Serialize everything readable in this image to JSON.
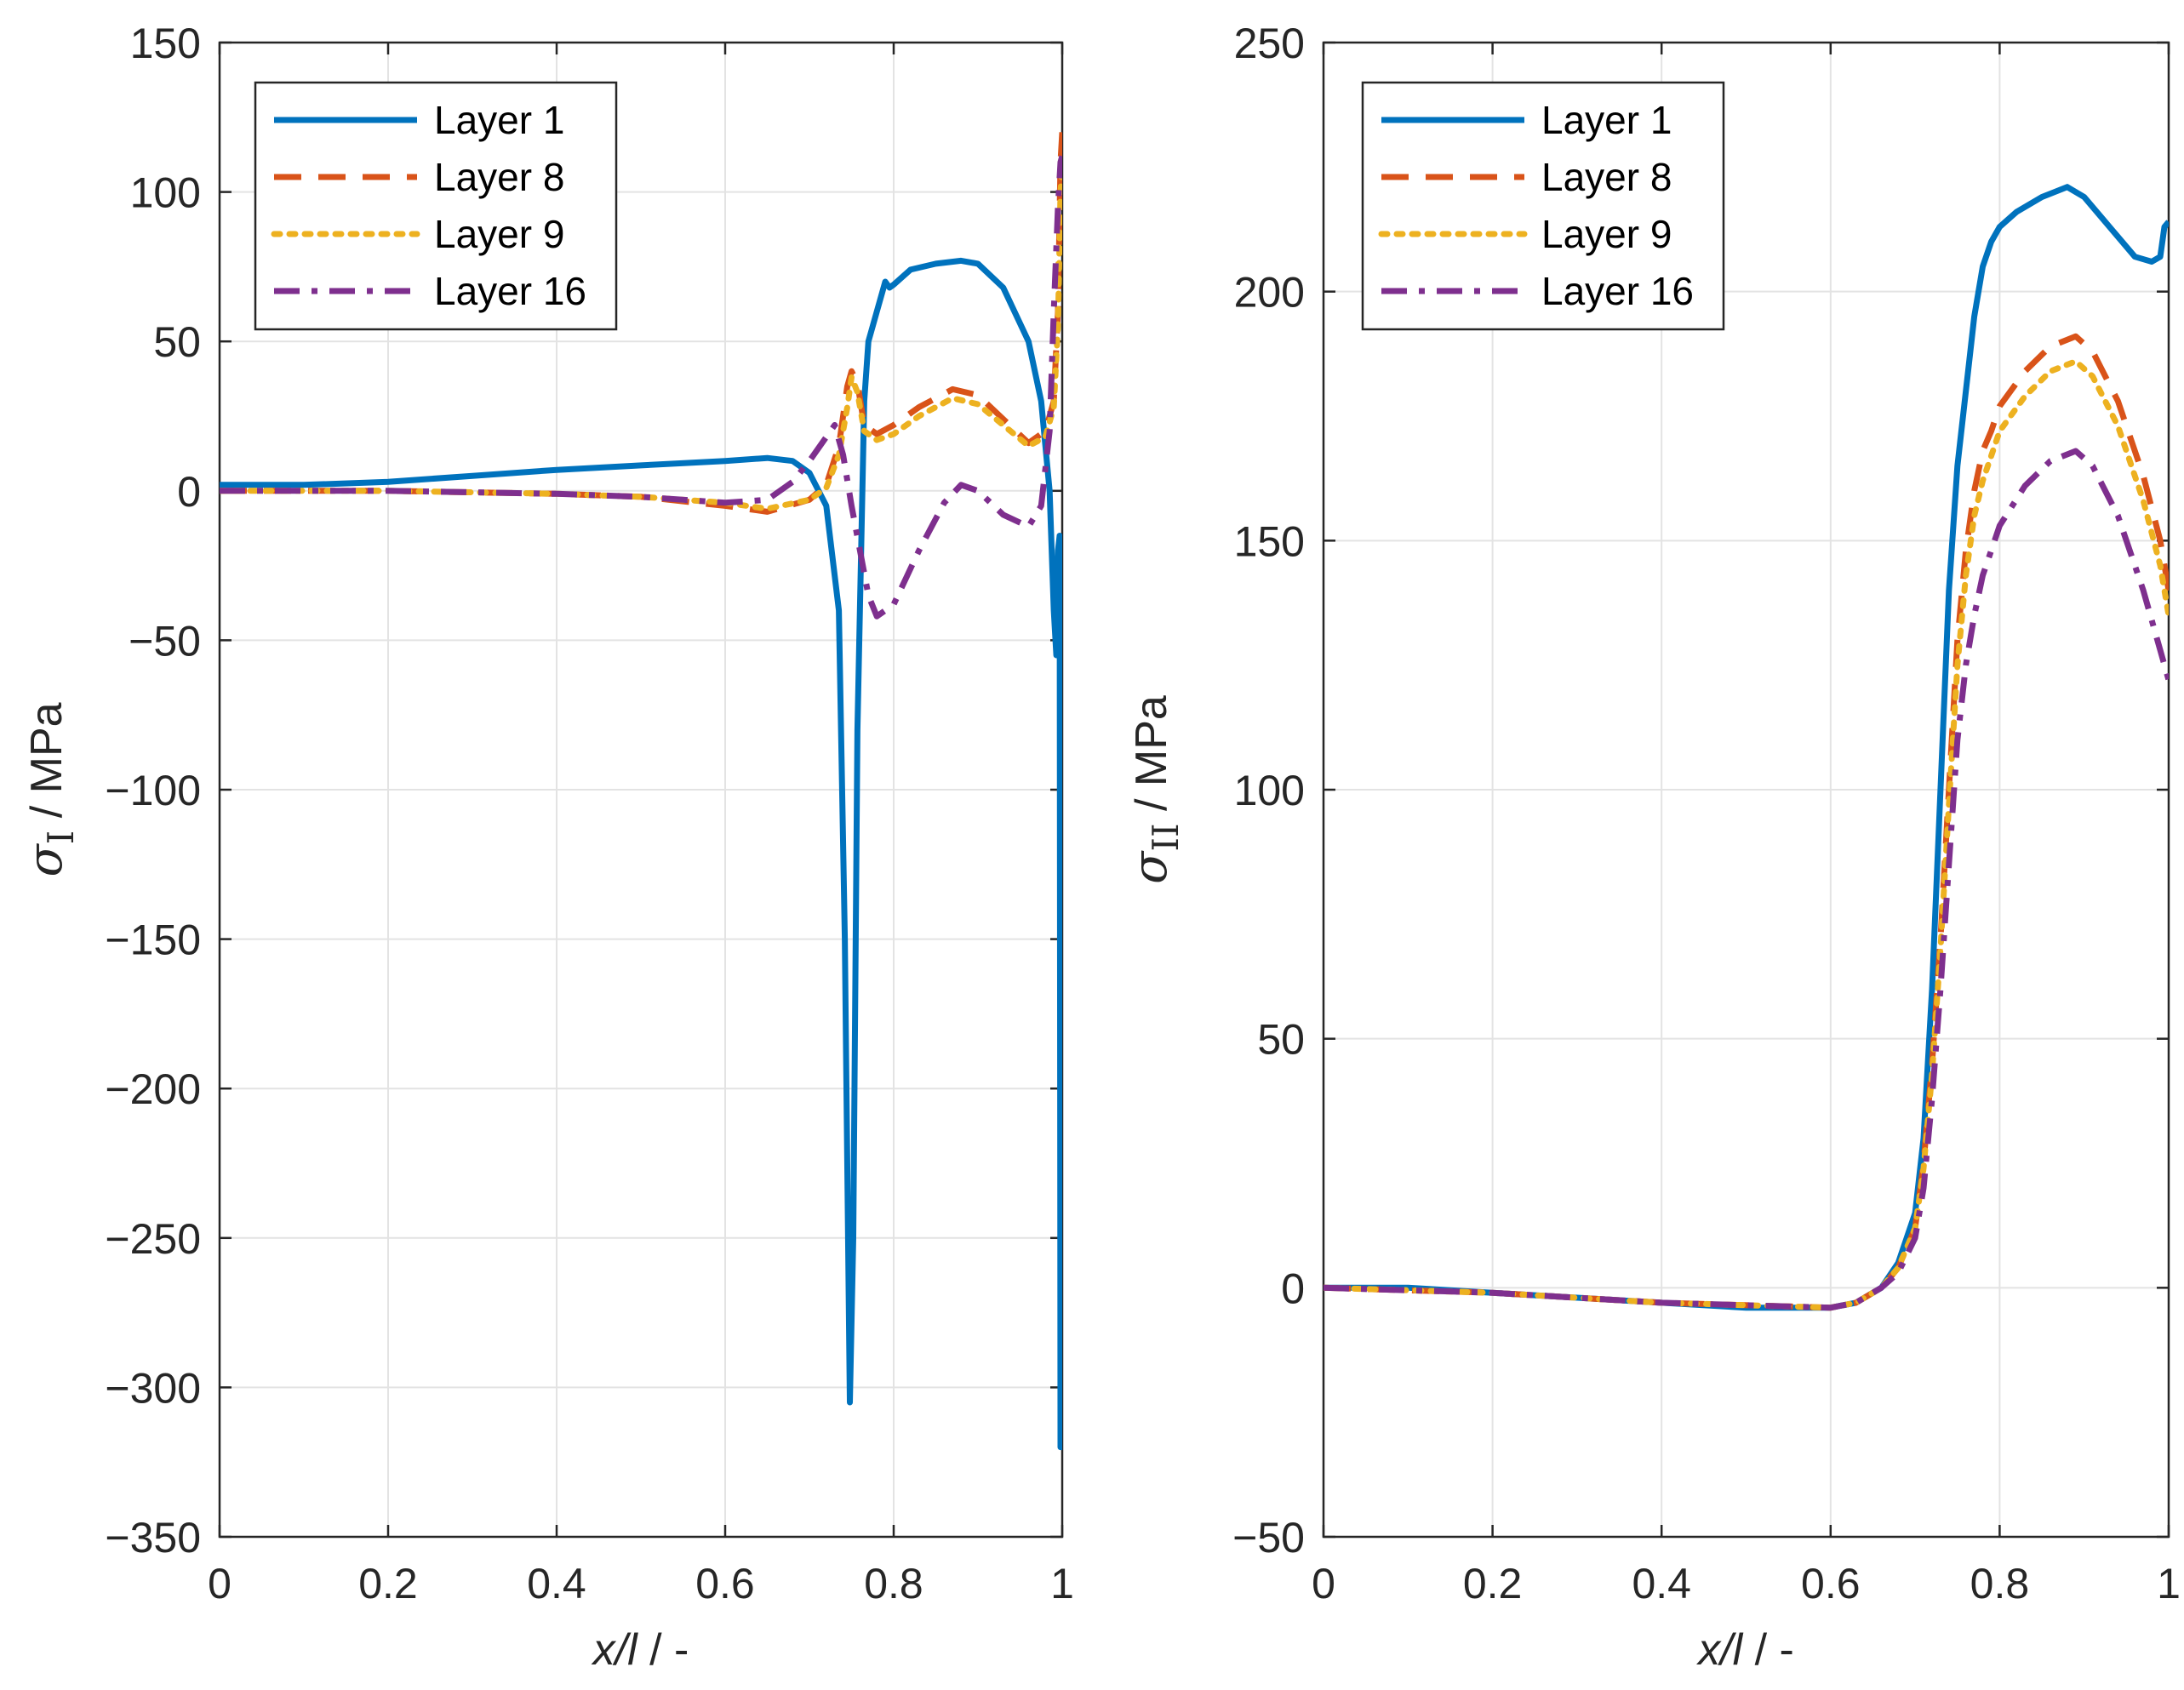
{
  "chart_data": [
    {
      "type": "line",
      "id": "left",
      "xlabel": "x/l",
      "xlabel_suffix": " / -",
      "ylabel": "σ",
      "ylabel_sub": "I",
      "ylabel_suffix": " / MPa",
      "xlim": [
        0,
        1
      ],
      "ylim": [
        -350,
        150
      ],
      "xticks": [
        0,
        0.2,
        0.4,
        0.6,
        0.8,
        1
      ],
      "xtick_labels": [
        "0",
        "0.2",
        "0.4",
        "0.6",
        "0.8",
        "1"
      ],
      "yticks": [
        -350,
        -300,
        -250,
        -200,
        -150,
        -100,
        -50,
        0,
        50,
        100,
        150
      ],
      "ytick_labels": [
        "−350",
        "−300",
        "−250",
        "−200",
        "−150",
        "−100",
        "−50",
        "0",
        "50",
        "100",
        "150"
      ],
      "grid": true,
      "legend_position": "top-left",
      "series": [
        {
          "name": "Layer 1",
          "color": "#0072BD",
          "style": "solid",
          "x": [
            0,
            0.1,
            0.2,
            0.3,
            0.4,
            0.5,
            0.6,
            0.65,
            0.68,
            0.7,
            0.72,
            0.735,
            0.742,
            0.748,
            0.752,
            0.757,
            0.765,
            0.77,
            0.78,
            0.79,
            0.795,
            0.8,
            0.82,
            0.85,
            0.88,
            0.9,
            0.93,
            0.96,
            0.975,
            0.985,
            0.99,
            0.993,
            0.995,
            0.997,
            0.998,
            1.0
          ],
          "y": [
            2,
            2,
            3,
            5,
            7,
            8.5,
            10,
            11,
            10,
            6,
            -5,
            -40,
            -150,
            -305,
            -250,
            -80,
            30,
            50,
            60,
            70,
            68,
            69,
            74,
            76,
            77,
            76,
            68,
            50,
            30,
            0,
            -40,
            -55,
            -20,
            -15,
            -320,
            -320
          ]
        },
        {
          "name": "Layer 8",
          "color": "#D95319",
          "style": "dashed",
          "x": [
            0,
            0.2,
            0.4,
            0.5,
            0.6,
            0.65,
            0.7,
            0.72,
            0.735,
            0.745,
            0.75,
            0.757,
            0.765,
            0.78,
            0.8,
            0.83,
            0.87,
            0.9,
            0.93,
            0.96,
            0.98,
            0.99,
            0.995,
            0.998,
            1.0
          ],
          "y": [
            0,
            0,
            -1,
            -2,
            -5,
            -7,
            -3,
            2,
            15,
            35,
            40,
            36,
            22,
            19,
            22,
            28,
            34,
            32,
            24,
            16,
            20,
            30,
            60,
            110,
            120
          ]
        },
        {
          "name": "Layer 9",
          "color": "#EDB120",
          "style": "dotted",
          "x": [
            0,
            0.2,
            0.4,
            0.5,
            0.6,
            0.65,
            0.7,
            0.72,
            0.735,
            0.745,
            0.75,
            0.757,
            0.765,
            0.78,
            0.8,
            0.83,
            0.87,
            0.9,
            0.93,
            0.96,
            0.98,
            0.99,
            0.995,
            0.998,
            1.0
          ],
          "y": [
            0,
            0,
            -1,
            -2,
            -4,
            -6,
            -3,
            1,
            12,
            28,
            38,
            33,
            20,
            17,
            19,
            25,
            31,
            29,
            22,
            15,
            18,
            28,
            55,
            100,
            110
          ]
        },
        {
          "name": "Layer 16",
          "color": "#7E2F8E",
          "style": "dashdot",
          "x": [
            0,
            0.2,
            0.4,
            0.5,
            0.6,
            0.65,
            0.68,
            0.7,
            0.72,
            0.73,
            0.74,
            0.75,
            0.76,
            0.77,
            0.78,
            0.8,
            0.83,
            0.86,
            0.88,
            0.9,
            0.93,
            0.96,
            0.975,
            0.985,
            0.99,
            0.995,
            0.998,
            1.0
          ],
          "y": [
            0,
            0,
            -1,
            -2,
            -4,
            -3,
            3,
            10,
            18,
            22,
            12,
            -5,
            -20,
            -35,
            -42,
            -38,
            -20,
            -4,
            2,
            0,
            -8,
            -12,
            -5,
            20,
            60,
            95,
            110,
            112
          ]
        }
      ]
    },
    {
      "type": "line",
      "id": "right",
      "xlabel": "x/l",
      "xlabel_suffix": " / -",
      "ylabel": "σ",
      "ylabel_sub": "II",
      "ylabel_suffix": " / MPa",
      "xlim": [
        0,
        1
      ],
      "ylim": [
        -50,
        250
      ],
      "xticks": [
        0,
        0.2,
        0.4,
        0.6,
        0.8,
        1
      ],
      "xtick_labels": [
        "0",
        "0.2",
        "0.4",
        "0.6",
        "0.8",
        "1"
      ],
      "yticks": [
        -50,
        0,
        50,
        100,
        150,
        200,
        250
      ],
      "ytick_labels": [
        "−50",
        "0",
        "50",
        "100",
        "150",
        "200",
        "250"
      ],
      "grid": true,
      "legend_position": "top-left",
      "series": [
        {
          "name": "Layer 1",
          "color": "#0072BD",
          "style": "solid",
          "x": [
            0,
            0.1,
            0.2,
            0.3,
            0.4,
            0.5,
            0.6,
            0.63,
            0.66,
            0.68,
            0.7,
            0.71,
            0.72,
            0.73,
            0.74,
            0.75,
            0.76,
            0.77,
            0.78,
            0.79,
            0.8,
            0.82,
            0.85,
            0.88,
            0.9,
            0.93,
            0.96,
            0.98,
            0.99,
            0.995,
            1.0
          ],
          "y": [
            0,
            0,
            -1,
            -2,
            -3,
            -4,
            -4,
            -3,
            0,
            5,
            15,
            30,
            60,
            100,
            140,
            165,
            180,
            195,
            205,
            210,
            213,
            216,
            219,
            221,
            219,
            213,
            207,
            206,
            207,
            213,
            214
          ]
        },
        {
          "name": "Layer 8",
          "color": "#D95319",
          "style": "dashed",
          "x": [
            0,
            0.2,
            0.4,
            0.6,
            0.63,
            0.66,
            0.68,
            0.7,
            0.71,
            0.72,
            0.73,
            0.74,
            0.75,
            0.76,
            0.77,
            0.78,
            0.79,
            0.8,
            0.83,
            0.86,
            0.89,
            0.91,
            0.94,
            0.97,
            0.99,
            1.0
          ],
          "y": [
            0,
            -1,
            -3,
            -4,
            -3,
            0,
            4,
            12,
            25,
            45,
            70,
            100,
            130,
            148,
            160,
            168,
            172,
            177,
            184,
            189,
            191,
            188,
            178,
            163,
            150,
            140
          ]
        },
        {
          "name": "Layer 9",
          "color": "#EDB120",
          "style": "dotted",
          "x": [
            0,
            0.2,
            0.4,
            0.6,
            0.63,
            0.66,
            0.68,
            0.7,
            0.71,
            0.72,
            0.73,
            0.74,
            0.75,
            0.76,
            0.77,
            0.78,
            0.79,
            0.8,
            0.83,
            0.86,
            0.89,
            0.91,
            0.94,
            0.97,
            0.99,
            1.0
          ],
          "y": [
            0,
            -1,
            -3,
            -4,
            -3,
            0,
            4,
            12,
            24,
            43,
            68,
            97,
            125,
            143,
            155,
            162,
            167,
            172,
            179,
            184,
            186,
            183,
            173,
            158,
            145,
            135
          ]
        },
        {
          "name": "Layer 16",
          "color": "#7E2F8E",
          "style": "dashdot",
          "x": [
            0,
            0.2,
            0.4,
            0.6,
            0.63,
            0.66,
            0.68,
            0.7,
            0.71,
            0.72,
            0.73,
            0.74,
            0.75,
            0.76,
            0.77,
            0.78,
            0.79,
            0.8,
            0.83,
            0.86,
            0.89,
            0.91,
            0.94,
            0.97,
            0.99,
            1.0
          ],
          "y": [
            0,
            -1,
            -3,
            -4,
            -3,
            0,
            3,
            10,
            20,
            38,
            60,
            85,
            110,
            125,
            135,
            143,
            148,
            153,
            161,
            166,
            168,
            165,
            155,
            140,
            128,
            122
          ]
        }
      ]
    }
  ]
}
